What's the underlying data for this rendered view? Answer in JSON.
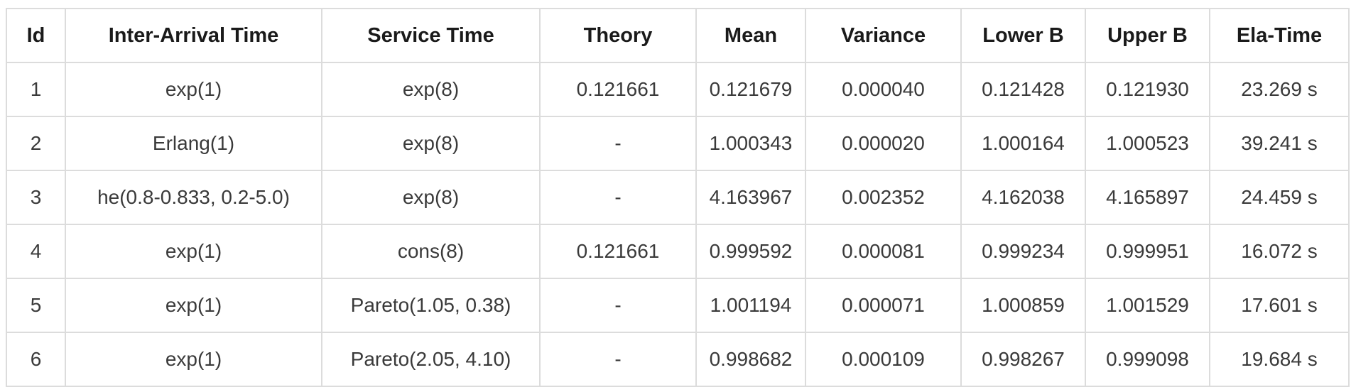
{
  "table": {
    "headers": [
      "Id",
      "Inter-Arrival Time",
      "Service Time",
      "Theory",
      "Mean",
      "Variance",
      "Lower B",
      "Upper B",
      "Ela-Time"
    ],
    "rows": [
      [
        "1",
        "exp(1)",
        "exp(8)",
        "0.121661",
        "0.121679",
        "0.000040",
        "0.121428",
        "0.121930",
        "23.269 s"
      ],
      [
        "2",
        "Erlang(1)",
        "exp(8)",
        "-",
        "1.000343",
        "0.000020",
        "1.000164",
        "1.000523",
        "39.241 s"
      ],
      [
        "3",
        "he(0.8-0.833, 0.2-5.0)",
        "exp(8)",
        "-",
        "4.163967",
        "0.002352",
        "4.162038",
        "4.165897",
        "24.459 s"
      ],
      [
        "4",
        "exp(1)",
        "cons(8)",
        "0.121661",
        "0.999592",
        "0.000081",
        "0.999234",
        "0.999951",
        "16.072 s"
      ],
      [
        "5",
        "exp(1)",
        "Pareto(1.05, 0.38)",
        "-",
        "1.001194",
        "0.000071",
        "1.000859",
        "1.001529",
        "17.601 s"
      ],
      [
        "6",
        "exp(1)",
        "Pareto(2.05, 4.10)",
        "-",
        "0.998682",
        "0.000109",
        "0.998267",
        "0.999098",
        "19.684 s"
      ]
    ]
  }
}
